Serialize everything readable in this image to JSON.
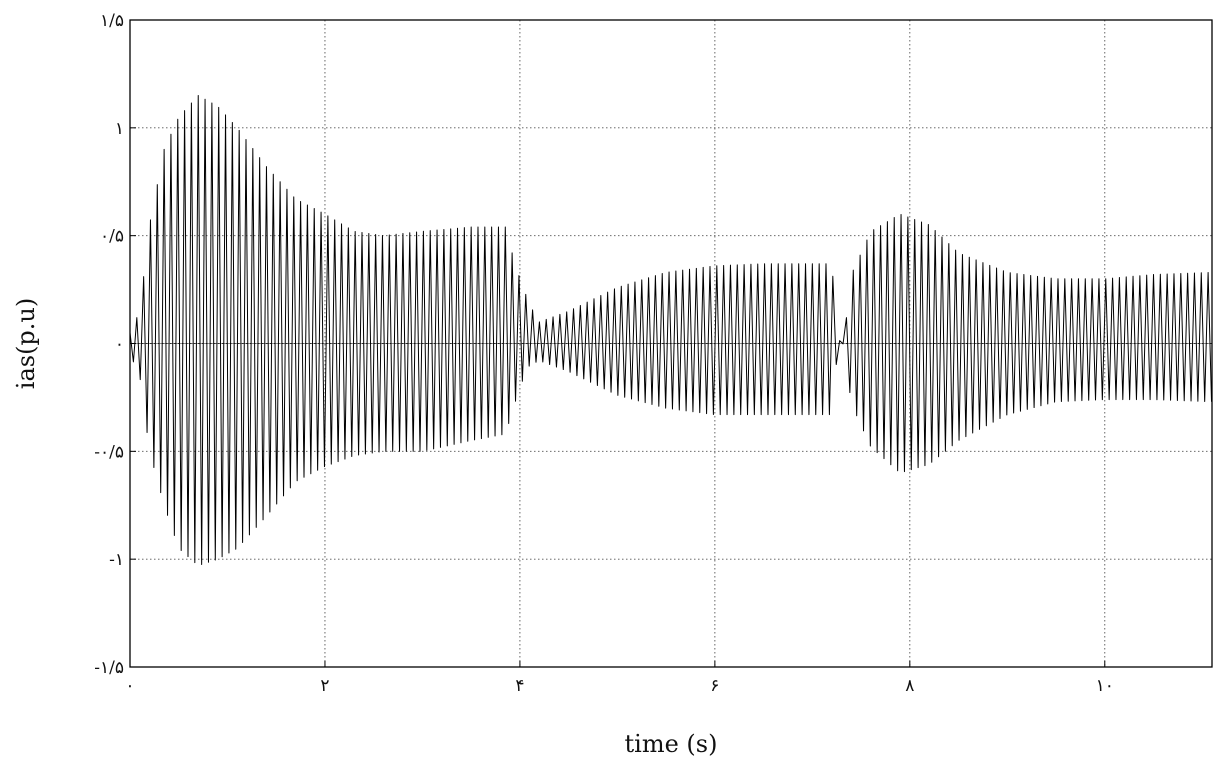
{
  "chart_data": {
    "type": "line",
    "title": "",
    "xlabel": "time (s)",
    "ylabel": "ias(p.u)",
    "xlim": [
      0,
      11.1
    ],
    "ylim": [
      -1.5,
      1.5
    ],
    "grid": true,
    "x_ticks": [
      0,
      2,
      4,
      6,
      8,
      10
    ],
    "x_tick_labels": [
      "٠",
      "٢",
      "۴",
      "۶",
      "٨",
      "١٠"
    ],
    "y_ticks": [
      1.5,
      1,
      0.5,
      0,
      -0.5,
      -1,
      -1.5
    ],
    "y_tick_labels": [
      "۱/۵",
      "۱",
      "۰/۵",
      "۰",
      "-۰/۵",
      "-۱",
      "-۱/۵"
    ],
    "series": [
      {
        "kind": "oscillating-current-envelope",
        "line_color": "#000000",
        "oscillation_period_s": 0.07,
        "envelope_upper": [
          [
            0.0,
            0.05
          ],
          [
            0.1,
            0.15
          ],
          [
            0.2,
            0.55
          ],
          [
            0.35,
            0.9
          ],
          [
            0.5,
            1.05
          ],
          [
            0.7,
            1.15
          ],
          [
            0.9,
            1.1
          ],
          [
            1.1,
            1.0
          ],
          [
            1.4,
            0.82
          ],
          [
            1.7,
            0.67
          ],
          [
            2.0,
            0.6
          ],
          [
            2.3,
            0.52
          ],
          [
            2.6,
            0.5
          ],
          [
            3.0,
            0.52
          ],
          [
            3.5,
            0.54
          ],
          [
            3.85,
            0.54
          ],
          [
            3.9,
            0.45
          ],
          [
            4.0,
            0.3
          ],
          [
            4.1,
            0.18
          ],
          [
            4.2,
            0.1
          ],
          [
            4.5,
            0.15
          ],
          [
            5.0,
            0.26
          ],
          [
            5.5,
            0.33
          ],
          [
            6.0,
            0.36
          ],
          [
            6.5,
            0.37
          ],
          [
            7.2,
            0.37
          ],
          [
            7.26,
            0.02
          ],
          [
            7.32,
            0.0
          ],
          [
            7.4,
            0.32
          ],
          [
            7.6,
            0.52
          ],
          [
            7.9,
            0.6
          ],
          [
            8.2,
            0.55
          ],
          [
            8.5,
            0.42
          ],
          [
            9.0,
            0.33
          ],
          [
            9.5,
            0.3
          ],
          [
            10.0,
            0.3
          ],
          [
            10.5,
            0.32
          ],
          [
            11.1,
            0.33
          ]
        ],
        "envelope_lower": [
          [
            0.0,
            -0.05
          ],
          [
            0.1,
            -0.15
          ],
          [
            0.2,
            -0.5
          ],
          [
            0.35,
            -0.75
          ],
          [
            0.5,
            -0.95
          ],
          [
            0.7,
            -1.03
          ],
          [
            0.9,
            -1.0
          ],
          [
            1.1,
            -0.95
          ],
          [
            1.4,
            -0.8
          ],
          [
            1.7,
            -0.64
          ],
          [
            2.0,
            -0.57
          ],
          [
            2.3,
            -0.52
          ],
          [
            2.6,
            -0.5
          ],
          [
            3.0,
            -0.5
          ],
          [
            3.5,
            -0.45
          ],
          [
            3.85,
            -0.42
          ],
          [
            3.9,
            -0.35
          ],
          [
            4.0,
            -0.2
          ],
          [
            4.1,
            -0.1
          ],
          [
            4.2,
            -0.08
          ],
          [
            4.5,
            -0.13
          ],
          [
            5.0,
            -0.24
          ],
          [
            5.5,
            -0.3
          ],
          [
            6.0,
            -0.33
          ],
          [
            6.5,
            -0.33
          ],
          [
            7.2,
            -0.33
          ],
          [
            7.26,
            -0.02
          ],
          [
            7.32,
            0.0
          ],
          [
            7.4,
            -0.28
          ],
          [
            7.6,
            -0.48
          ],
          [
            7.9,
            -0.6
          ],
          [
            8.2,
            -0.56
          ],
          [
            8.5,
            -0.45
          ],
          [
            9.0,
            -0.33
          ],
          [
            9.5,
            -0.27
          ],
          [
            10.0,
            -0.26
          ],
          [
            10.5,
            -0.26
          ],
          [
            11.1,
            -0.27
          ]
        ]
      }
    ]
  }
}
